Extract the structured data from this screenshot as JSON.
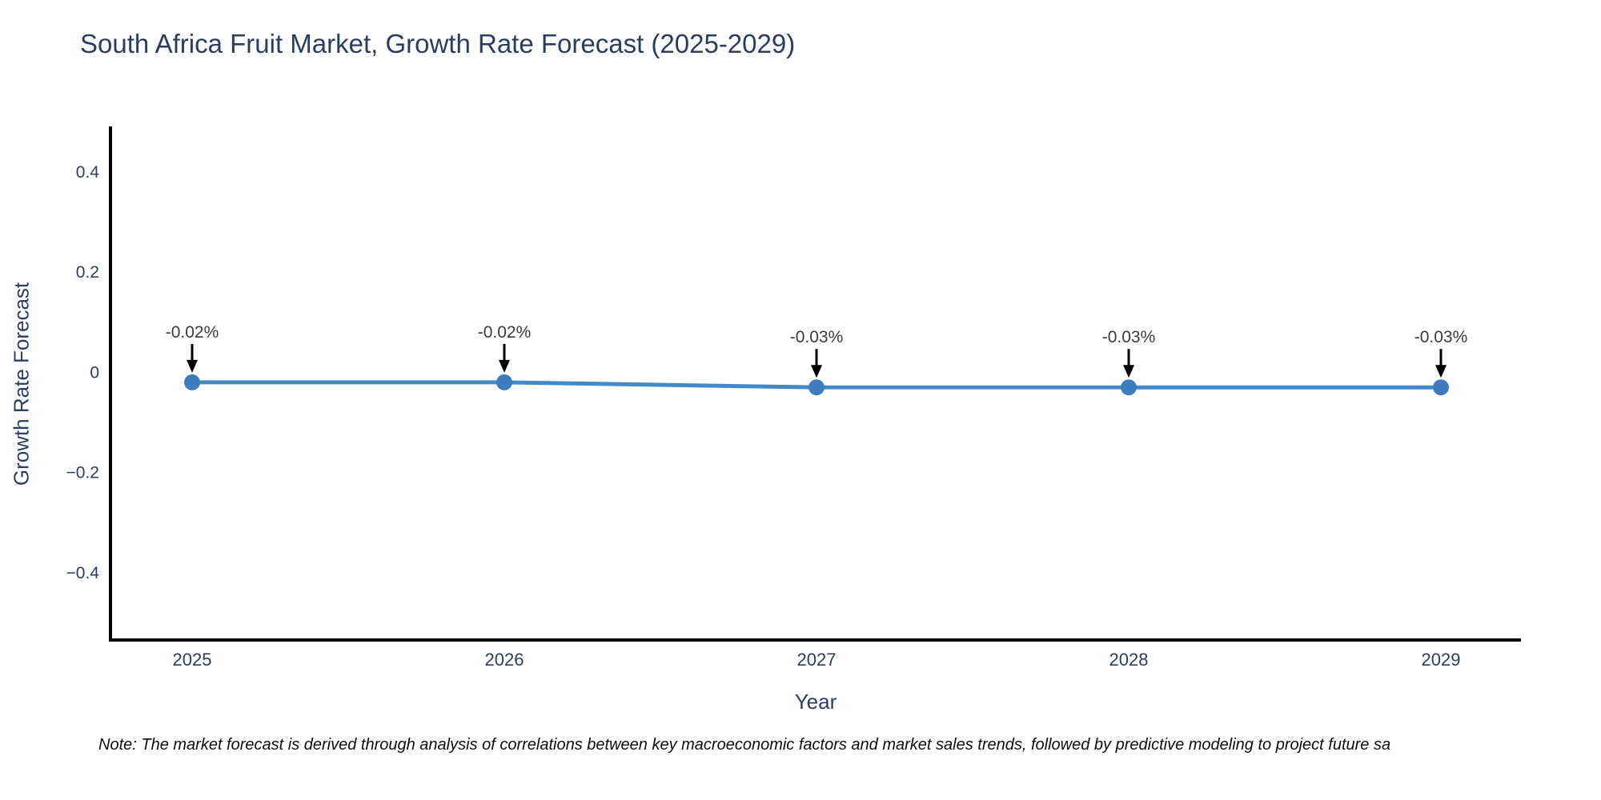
{
  "header": {
    "title": "South Africa Fruit Market, Growth Rate Forecast (2025-2029)"
  },
  "footnote": {
    "text": "Note: The market forecast is derived through analysis of correlations between key macroeconomic factors and market sales trends, followed by predictive modeling to project future sa"
  },
  "chart_data": {
    "type": "line",
    "title": "South Africa Fruit Market, Growth Rate Forecast (2025-2029)",
    "xlabel": "Year",
    "ylabel": "Growth Rate Forecast",
    "categories": [
      "2025",
      "2026",
      "2027",
      "2028",
      "2029"
    ],
    "series": [
      {
        "name": "Growth Rate Forecast",
        "values": [
          -0.02,
          -0.02,
          -0.03,
          -0.03,
          -0.03
        ]
      }
    ],
    "point_labels": [
      "-0.02%",
      "-0.02%",
      "-0.03%",
      "-0.03%",
      "-0.03%"
    ],
    "yticks": [
      0.4,
      0.2,
      0,
      -0.2,
      -0.4
    ],
    "ytick_labels": [
      "0.4",
      "0.2",
      "0",
      "−0.2",
      "−0.4"
    ],
    "ylim": [
      -0.54,
      0.49
    ],
    "grid": false,
    "legend_position": "none",
    "annotations_have_arrows": true,
    "colors": {
      "line": "#4489c8",
      "marker": "#3d7dbd",
      "axis_line": "#000000",
      "axis_text": "#2a3f5f",
      "annotation_text": "#3b3b3b",
      "arrow": "#000000"
    }
  }
}
